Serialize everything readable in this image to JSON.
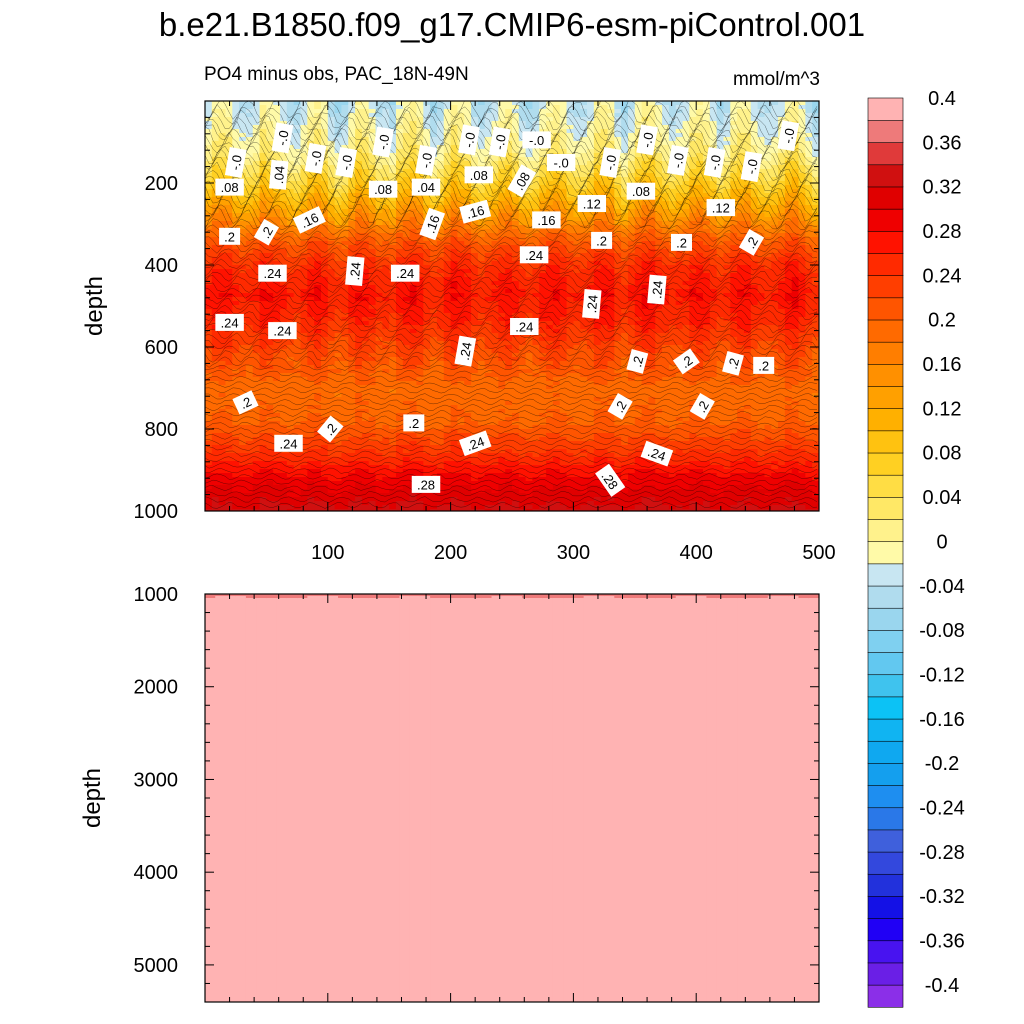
{
  "chart_data": [
    {
      "type": "heatmap",
      "panel": "upper",
      "title": "b.e21.B1850.f09_g17.CMIP6-esm-piControl.001",
      "subtitle_left": "PO4 minus obs, PAC_18N-49N",
      "subtitle_right": "mmol/m^3",
      "xlabel": "",
      "ylabel": "depth",
      "xlim": [
        0,
        500
      ],
      "ylim": [
        1000,
        0
      ],
      "x_ticks": [
        100,
        200,
        300,
        400,
        500
      ],
      "y_ticks": [
        200,
        400,
        600,
        800,
        1000
      ],
      "depth_profile": [
        {
          "depth": 0,
          "value": -0.03
        },
        {
          "depth": 60,
          "value": -0.01
        },
        {
          "depth": 120,
          "value": 0.01
        },
        {
          "depth": 170,
          "value": 0.05
        },
        {
          "depth": 220,
          "value": 0.09
        },
        {
          "depth": 280,
          "value": 0.15
        },
        {
          "depth": 340,
          "value": 0.21
        },
        {
          "depth": 400,
          "value": 0.25
        },
        {
          "depth": 470,
          "value": 0.27
        },
        {
          "depth": 540,
          "value": 0.25
        },
        {
          "depth": 610,
          "value": 0.22
        },
        {
          "depth": 700,
          "value": 0.19
        },
        {
          "depth": 780,
          "value": 0.2
        },
        {
          "depth": 850,
          "value": 0.24
        },
        {
          "depth": 920,
          "value": 0.29
        },
        {
          "depth": 1000,
          "value": 0.33
        }
      ],
      "contour_labels": [
        {
          "text": "-.0",
          "x": 25,
          "depth": 150,
          "angle": -80
        },
        {
          "text": "-.0",
          "x": 63,
          "depth": 90,
          "angle": -80
        },
        {
          "text": "-.0",
          "x": 90,
          "depth": 140,
          "angle": -80
        },
        {
          "text": "-.0",
          "x": 115,
          "depth": 150,
          "angle": -80
        },
        {
          "text": "-.0",
          "x": 145,
          "depth": 100,
          "angle": -80
        },
        {
          "text": "-.0",
          "x": 180,
          "depth": 145,
          "angle": -80
        },
        {
          "text": "-.0",
          "x": 215,
          "depth": 95,
          "angle": -80
        },
        {
          "text": "-.0",
          "x": 240,
          "depth": 100,
          "angle": -80
        },
        {
          "text": "-.0",
          "x": 270,
          "depth": 95,
          "angle": 0
        },
        {
          "text": "-.0",
          "x": 290,
          "depth": 150,
          "angle": 0
        },
        {
          "text": "-.0",
          "x": 330,
          "depth": 150,
          "angle": -80
        },
        {
          "text": "-.0",
          "x": 360,
          "depth": 95,
          "angle": -80
        },
        {
          "text": "-.0",
          "x": 385,
          "depth": 145,
          "angle": -80
        },
        {
          "text": "-.0",
          "x": 415,
          "depth": 150,
          "angle": -80
        },
        {
          "text": "-.0",
          "x": 445,
          "depth": 160,
          "angle": -80
        },
        {
          "text": "-.0",
          "x": 475,
          "depth": 85,
          "angle": -80
        },
        {
          "text": ".08",
          "x": 20,
          "depth": 210,
          "angle": 0
        },
        {
          "text": ".04",
          "x": 60,
          "depth": 180,
          "angle": -85
        },
        {
          "text": ".08",
          "x": 145,
          "depth": 215,
          "angle": 0
        },
        {
          "text": ".04",
          "x": 180,
          "depth": 210,
          "angle": 0
        },
        {
          "text": ".08",
          "x": 223,
          "depth": 180,
          "angle": 0
        },
        {
          "text": ".08",
          "x": 258,
          "depth": 195,
          "angle": -60
        },
        {
          "text": ".08",
          "x": 355,
          "depth": 220,
          "angle": 0
        },
        {
          "text": ".12",
          "x": 315,
          "depth": 250,
          "angle": 0
        },
        {
          "text": ".12",
          "x": 420,
          "depth": 260,
          "angle": 0
        },
        {
          "text": ".16",
          "x": 85,
          "depth": 290,
          "angle": -25
        },
        {
          "text": ".16",
          "x": 185,
          "depth": 300,
          "angle": -70
        },
        {
          "text": ".16",
          "x": 220,
          "depth": 270,
          "angle": -15
        },
        {
          "text": ".16",
          "x": 278,
          "depth": 290,
          "angle": 0
        },
        {
          "text": ".2",
          "x": 20,
          "depth": 330,
          "angle": 0
        },
        {
          "text": ".2",
          "x": 50,
          "depth": 320,
          "angle": -60
        },
        {
          "text": ".2",
          "x": 323,
          "depth": 340,
          "angle": 0
        },
        {
          "text": ".2",
          "x": 388,
          "depth": 345,
          "angle": 0
        },
        {
          "text": ".2",
          "x": 445,
          "depth": 345,
          "angle": -60
        },
        {
          "text": ".24",
          "x": 55,
          "depth": 420,
          "angle": 0
        },
        {
          "text": ".24",
          "x": 122,
          "depth": 415,
          "angle": -85
        },
        {
          "text": ".24",
          "x": 163,
          "depth": 420,
          "angle": 0
        },
        {
          "text": ".24",
          "x": 268,
          "depth": 375,
          "angle": 0
        },
        {
          "text": ".24",
          "x": 315,
          "depth": 495,
          "angle": -85
        },
        {
          "text": ".24",
          "x": 368,
          "depth": 460,
          "angle": -85
        },
        {
          "text": ".24",
          "x": 20,
          "depth": 540,
          "angle": 0
        },
        {
          "text": ".24",
          "x": 63,
          "depth": 560,
          "angle": 0
        },
        {
          "text": ".24",
          "x": 260,
          "depth": 550,
          "angle": 0
        },
        {
          "text": ".24",
          "x": 212,
          "depth": 610,
          "angle": -80
        },
        {
          "text": ".2",
          "x": 352,
          "depth": 635,
          "angle": -75
        },
        {
          "text": ".2",
          "x": 392,
          "depth": 635,
          "angle": -35
        },
        {
          "text": ".2",
          "x": 430,
          "depth": 640,
          "angle": -75
        },
        {
          "text": ".2",
          "x": 455,
          "depth": 645,
          "angle": 0
        },
        {
          "text": ".2",
          "x": 33,
          "depth": 735,
          "angle": -25
        },
        {
          "text": ".2",
          "x": 102,
          "depth": 800,
          "angle": -50
        },
        {
          "text": ".2",
          "x": 170,
          "depth": 785,
          "angle": 0
        },
        {
          "text": ".2",
          "x": 338,
          "depth": 745,
          "angle": -60
        },
        {
          "text": ".2",
          "x": 405,
          "depth": 745,
          "angle": -60
        },
        {
          "text": ".24",
          "x": 68,
          "depth": 835,
          "angle": 0
        },
        {
          "text": ".24",
          "x": 220,
          "depth": 835,
          "angle": -20
        },
        {
          "text": ".24",
          "x": 368,
          "depth": 860,
          "angle": 20
        },
        {
          "text": ".28",
          "x": 180,
          "depth": 935,
          "angle": 0
        },
        {
          "text": ".28",
          "x": 330,
          "depth": 925,
          "angle": 55
        }
      ]
    },
    {
      "type": "heatmap",
      "panel": "lower",
      "xlabel": "",
      "ylabel": "depth",
      "xlim": [
        0,
        500
      ],
      "ylim": [
        5400,
        1000
      ],
      "y_ticks": [
        1000,
        2000,
        3000,
        4000,
        5000
      ],
      "depth_profile": [
        {
          "depth": 1000,
          "value": 0.36
        },
        {
          "depth": 1050,
          "value": 0.4
        },
        {
          "depth": 1150,
          "value": 0.42
        },
        {
          "depth": 5400,
          "value": 0.42
        }
      ]
    }
  ],
  "colorbar": {
    "levels": [
      -0.4,
      -0.38,
      -0.36,
      -0.34,
      -0.32,
      -0.3,
      -0.28,
      -0.26,
      -0.24,
      -0.22,
      -0.2,
      -0.18,
      -0.16,
      -0.14,
      -0.12,
      -0.1,
      -0.08,
      -0.06,
      -0.04,
      -0.02,
      0,
      0.02,
      0.04,
      0.06,
      0.08,
      0.1,
      0.12,
      0.14,
      0.16,
      0.18,
      0.2,
      0.22,
      0.24,
      0.26,
      0.28,
      0.3,
      0.32,
      0.34,
      0.36,
      0.38,
      0.4
    ],
    "tick_labels": [
      "-0.4",
      "-0.36",
      "-0.32",
      "-0.28",
      "-0.24",
      "-0.2",
      "-0.16",
      "-0.12",
      "-0.08",
      "-0.04",
      "0",
      "0.04",
      "0.08",
      "0.12",
      "0.16",
      "0.2",
      "0.24",
      "0.28",
      "0.32",
      "0.36",
      "0.4"
    ],
    "colors": [
      "#8b2fe8",
      "#6a1fe6",
      "#4813f0",
      "#2000f5",
      "#1411e6",
      "#2231dc",
      "#3348dd",
      "#3f60dc",
      "#2a78e8",
      "#1e8ef0",
      "#149fee",
      "#0fa8f0",
      "#10b4f2",
      "#0cc2f5",
      "#3fc3ee",
      "#62c8f0",
      "#7fd0f0",
      "#9ad6ee",
      "#b0dcee",
      "#c8e6f2",
      "#fffaa8",
      "#fff28c",
      "#ffe866",
      "#ffdd44",
      "#ffd022",
      "#ffc210",
      "#ffb000",
      "#ffa000",
      "#ff9000",
      "#ff7e00",
      "#ff6a00",
      "#ff5500",
      "#ff3e00",
      "#ff2a00",
      "#ff1200",
      "#ef0000",
      "#e00000",
      "#d01010",
      "#e03a3a",
      "#ee7a7a",
      "#ffb3b3"
    ]
  }
}
